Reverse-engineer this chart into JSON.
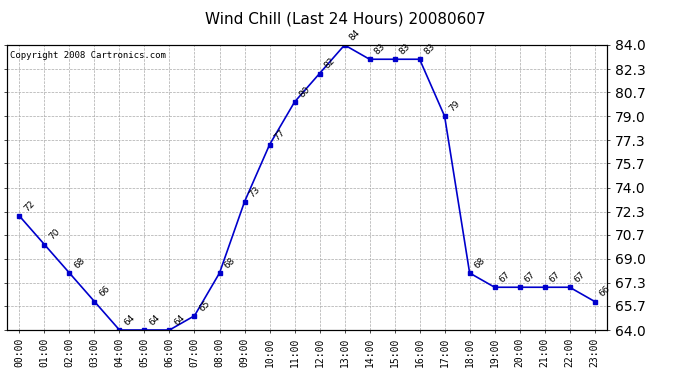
{
  "title": "Wind Chill (Last 24 Hours) 20080607",
  "copyright": "Copyright 2008 Cartronics.com",
  "hours": [
    "00:00",
    "01:00",
    "02:00",
    "03:00",
    "04:00",
    "05:00",
    "06:00",
    "07:00",
    "08:00",
    "09:00",
    "10:00",
    "11:00",
    "12:00",
    "13:00",
    "14:00",
    "15:00",
    "16:00",
    "17:00",
    "18:00",
    "19:00",
    "20:00",
    "21:00",
    "22:00",
    "23:00"
  ],
  "values": [
    72,
    70,
    68,
    66,
    64,
    64,
    64,
    65,
    68,
    73,
    77,
    80,
    82,
    84,
    83,
    83,
    83,
    79,
    68,
    67,
    67,
    67,
    67,
    66
  ],
  "ylim_min": 64.0,
  "ylim_max": 84.0,
  "yticks": [
    64.0,
    65.7,
    67.3,
    69.0,
    70.7,
    72.3,
    74.0,
    75.7,
    77.3,
    79.0,
    80.7,
    82.3,
    84.0
  ],
  "ytick_labels": [
    "64.0",
    "65.7",
    "67.3",
    "69.0",
    "70.7",
    "72.3",
    "74.0",
    "75.7",
    "77.3",
    "79.0",
    "80.7",
    "82.3",
    "84.0"
  ],
  "line_color": "#0000cc",
  "marker_color": "#0000cc",
  "bg_color": "#ffffff",
  "grid_color": "#aaaaaa",
  "title_fontsize": 11,
  "label_fontsize": 6.5,
  "tick_fontsize": 7,
  "copyright_fontsize": 6.5
}
